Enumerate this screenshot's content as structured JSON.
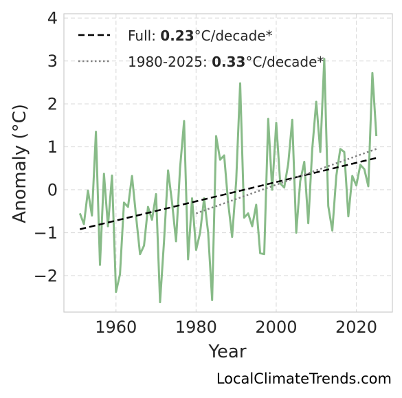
{
  "chart_data": {
    "type": "line",
    "title": "",
    "xlabel": "Year",
    "ylabel": "Anomaly (°C)",
    "xlim": [
      1947,
      2029
    ],
    "ylim": [
      -2.85,
      4.1
    ],
    "xticks": [
      1960,
      1980,
      2000,
      2020
    ],
    "yticks": [
      4,
      3,
      2,
      1,
      0,
      -1,
      -2
    ],
    "ytick_labels": [
      "4",
      "3",
      "2",
      "1",
      "0",
      "−1",
      "−2"
    ],
    "grid": true,
    "legend_position": "top-left",
    "colors": {
      "series": "#88bb88",
      "full_trend": "#000000",
      "recent_trend": "#808080"
    },
    "x": [
      1951,
      1952,
      1953,
      1954,
      1955,
      1956,
      1957,
      1958,
      1959,
      1960,
      1961,
      1962,
      1963,
      1964,
      1965,
      1966,
      1967,
      1968,
      1969,
      1970,
      1971,
      1972,
      1973,
      1974,
      1975,
      1976,
      1977,
      1978,
      1979,
      1980,
      1981,
      1982,
      1983,
      1984,
      1985,
      1986,
      1987,
      1988,
      1989,
      1990,
      1991,
      1992,
      1993,
      1994,
      1995,
      1996,
      1997,
      1998,
      1999,
      2000,
      2001,
      2002,
      2003,
      2004,
      2005,
      2006,
      2007,
      2008,
      2009,
      2010,
      2011,
      2012,
      2013,
      2014,
      2015,
      2016,
      2017,
      2018,
      2019,
      2020,
      2021,
      2022,
      2023,
      2024,
      2025
    ],
    "series": [
      {
        "values": [
          -0.55,
          -0.8,
          -0.02,
          -0.6,
          1.35,
          -1.75,
          0.37,
          -0.85,
          0.33,
          -2.38,
          -1.97,
          -0.3,
          -0.4,
          0.32,
          -0.6,
          -1.5,
          -1.3,
          -0.4,
          -0.7,
          -0.1,
          -2.62,
          -1.2,
          0.45,
          -0.3,
          -1.2,
          0.5,
          1.6,
          -1.62,
          -0.2,
          -1.4,
          -1.0,
          -0.2,
          -1.0,
          -2.57,
          1.25,
          0.7,
          0.8,
          -0.3,
          -1.1,
          0.2,
          2.48,
          -0.65,
          -0.55,
          -0.85,
          -0.35,
          -1.48,
          -1.5,
          1.65,
          0.0,
          1.56,
          0.15,
          0.05,
          0.6,
          1.63,
          -1.0,
          0.2,
          0.65,
          -0.78,
          0.95,
          2.05,
          0.88,
          3.05,
          -0.38,
          -0.95,
          0.32,
          0.95,
          0.88,
          -0.62,
          0.32,
          0.1,
          0.58,
          0.48,
          0.08,
          2.72,
          1.25
        ]
      }
    ],
    "trend_lines": [
      {
        "x": [
          1951,
          2025
        ],
        "y": [
          -0.92,
          0.74
        ]
      },
      {
        "x": [
          1980,
          2025
        ],
        "y": [
          -0.55,
          0.95
        ]
      }
    ],
    "legend": [
      {
        "prefix": "Full: ",
        "value": "0.23",
        "suffix": "°C/decade*"
      },
      {
        "prefix": "1980-2025: ",
        "value": "0.33",
        "suffix": "°C/decade*"
      }
    ]
  },
  "watermark": "LocalClimateTrends.com"
}
